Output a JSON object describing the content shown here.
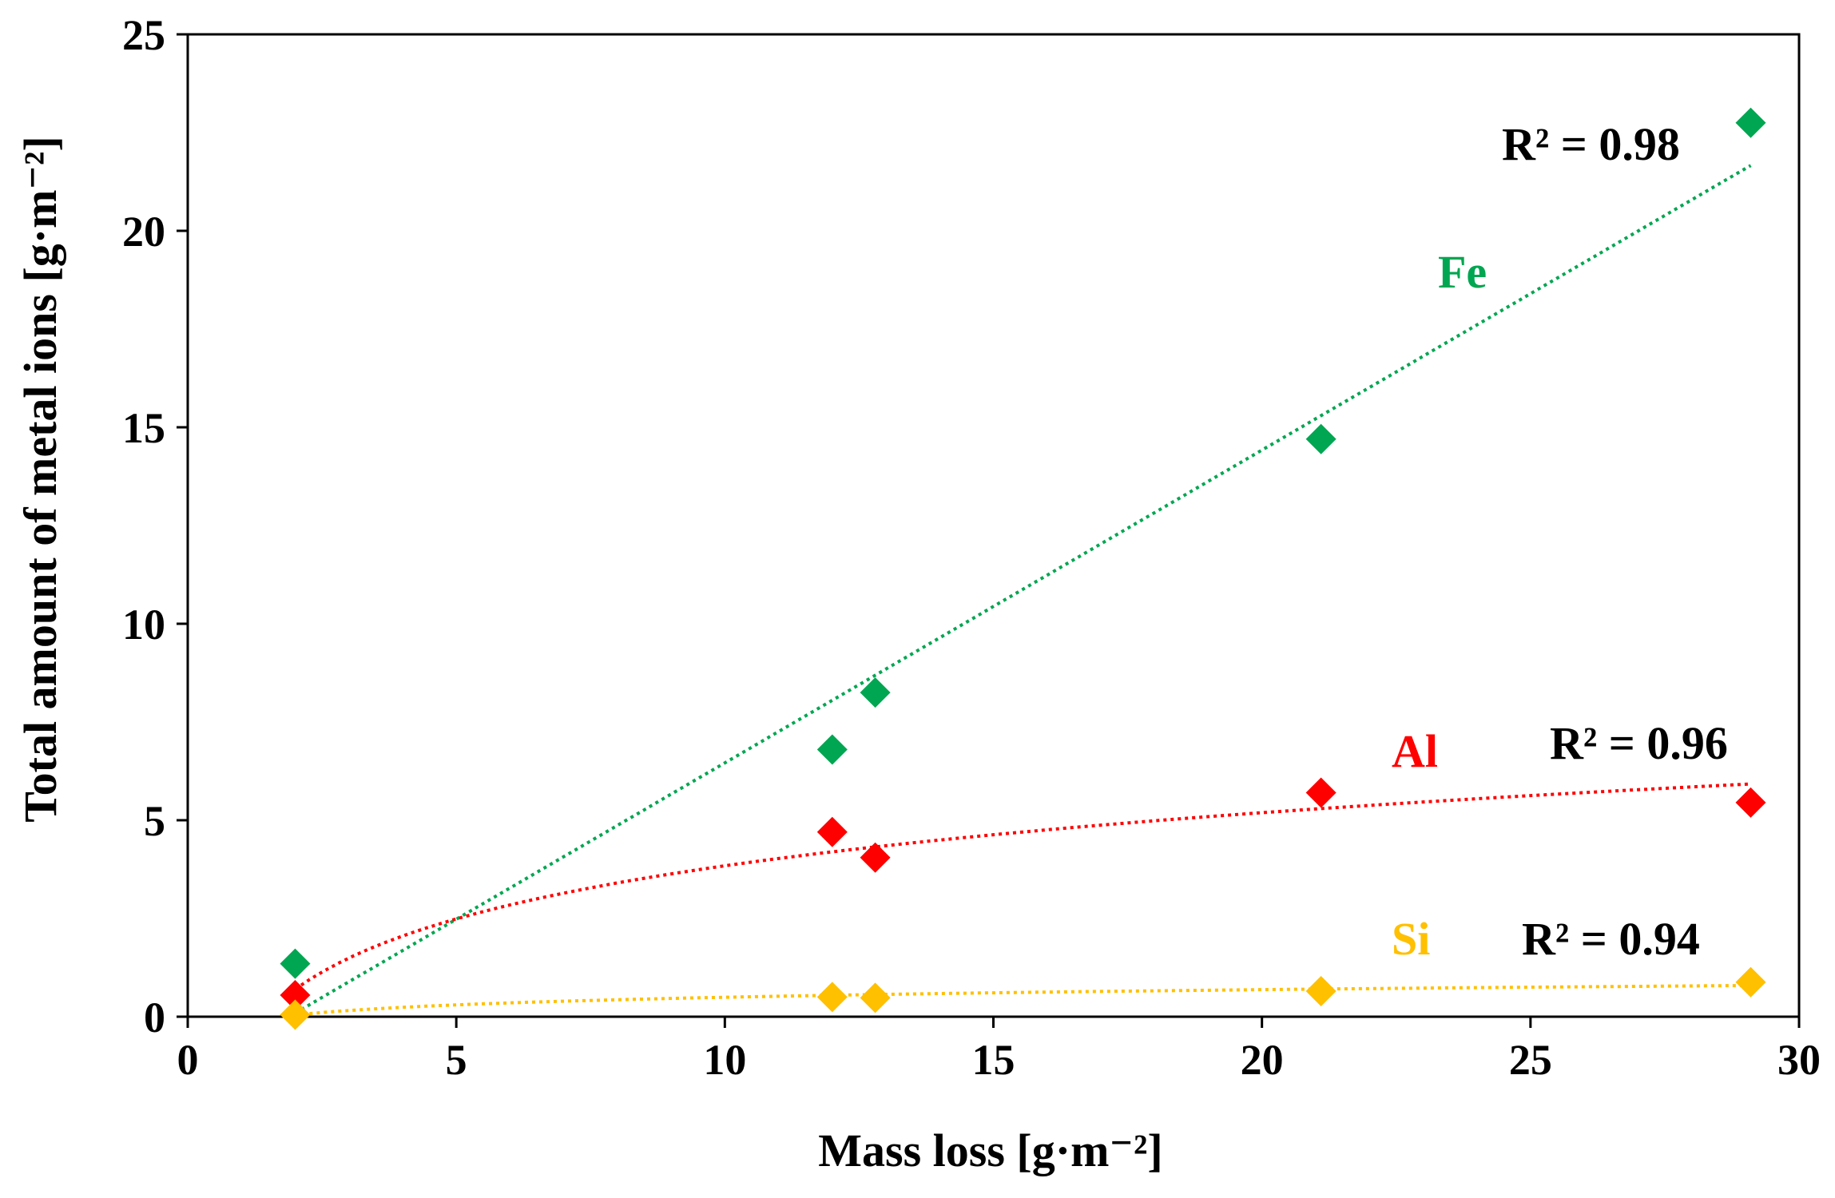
{
  "chart_data": {
    "type": "scatter",
    "title": "",
    "xlabel": "Mass loss [g·m⁻²]",
    "ylabel": "Total amount of metal ions [g·m⁻²]",
    "xlim": [
      0,
      30
    ],
    "ylim": [
      0,
      25
    ],
    "xticks": [
      "0",
      "5",
      "10",
      "15",
      "20",
      "25",
      "30"
    ],
    "yticks": [
      "0",
      "5",
      "10",
      "15",
      "20",
      "25"
    ],
    "grid": false,
    "legend": "none",
    "series": [
      {
        "name": "Fe",
        "color": "#00a651",
        "marker": "diamond",
        "x": [
          2.0,
          12.0,
          12.8,
          21.1,
          29.1
        ],
        "y": [
          1.35,
          6.8,
          8.25,
          14.7,
          22.75
        ],
        "trend": {
          "type": "linear",
          "slope": 0.796,
          "intercept": -1.5,
          "r2": "R² = 0.98"
        }
      },
      {
        "name": "Al",
        "color": "#ff0000",
        "marker": "diamond",
        "x": [
          2.0,
          12.0,
          12.8,
          21.1,
          29.1
        ],
        "y": [
          0.55,
          4.7,
          4.05,
          5.7,
          5.45
        ],
        "trend": {
          "type": "log",
          "a": 1.95,
          "b": -0.65,
          "r2": "R² = 0.96"
        }
      },
      {
        "name": "Si",
        "color": "#ffc000",
        "marker": "diamond",
        "x": [
          2.0,
          12.0,
          12.8,
          21.1,
          29.1
        ],
        "y": [
          0.05,
          0.5,
          0.48,
          0.65,
          0.88
        ],
        "trend": {
          "type": "log",
          "a": 0.28,
          "b": -0.15,
          "r2": "R² = 0.94"
        }
      }
    ]
  }
}
